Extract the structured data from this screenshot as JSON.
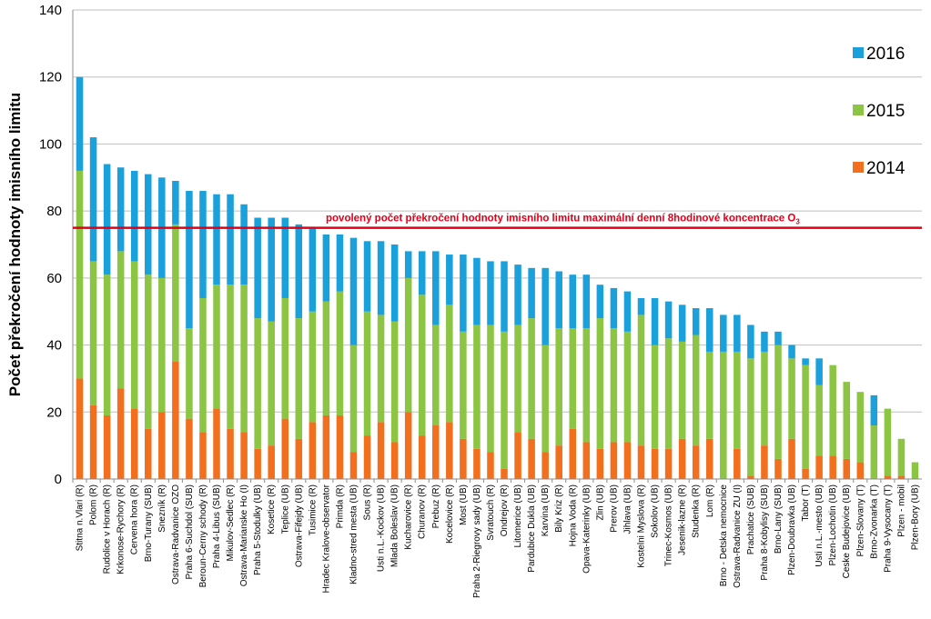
{
  "chart_data": {
    "type": "bar",
    "stacked": true,
    "title": "",
    "xlabel": "",
    "ylabel": "Počet překročení hodnoty imisního limitu",
    "ylim": [
      0,
      140
    ],
    "yticks": [
      0,
      20,
      40,
      60,
      80,
      100,
      120,
      140
    ],
    "grid": "horizontal",
    "legend_position": "right",
    "colors": {
      "2014": "#f26f1e",
      "2015": "#8cc544",
      "2016": "#1aa1dc",
      "limit": "#e0001a"
    },
    "categories": [
      "Stitna n.Vlari (R)",
      "Polom (R)",
      "Rudolice v Horach (R)",
      "Krkonose-Rychory (R)",
      "Cervena hora (R)",
      "Brno-Turany (SUB)",
      "Snezník (R)",
      "Ostrava-Radvanice OZO",
      "Praha 6-Suchdol (SUB)",
      "Beroun-Cerny schody (R)",
      "Praha 4-Libus (SUB)",
      "Mikulov-Sedlec (R)",
      "Ostrava-Marianske Ho (I)",
      "Praha 5-Stodulky (UB)",
      "Kosetice (R)",
      "Teplice (UB)",
      "Ostrava-Fifejdy (UB)",
      "Tusimice (R)",
      "Hradec Kralove-observator",
      "Primda (R)",
      "Kladno-stred mesta (UB)",
      "Sous (R)",
      "Usti n.L.-Kockov (UB)",
      "Mlada Boleslav (UB)",
      "Kucharovice (R)",
      "Churanov (R)",
      "Prebuz (R)",
      "Kocelovice (R)",
      "Most (UB)",
      "Praha 2-Riegrovy sady (UB)",
      "Svratouch (R)",
      "Ondrejov (R)",
      "Litomerice (UB)",
      "Pardubice Dukla (UB)",
      "Karvina (UB)",
      "Bily Kriz (R)",
      "Hojna Voda (R)",
      "Opava-Katerinky (UB)",
      "Zlin (UB)",
      "Prerov (UB)",
      "Jihlava (UB)",
      "Kostelni Myslova (R)",
      "Sokolov (UB)",
      "Trinec-Kosmos (UB)",
      "Jesenik-lazne (R)",
      "Studenka (R)",
      "Lom (R)",
      "Brno - Detska nemocnice",
      "Ostrava-Radvanice ZU (I)",
      "Prachatice (SUB)",
      "Praha 8-Kobylisy (SUB)",
      "Brno-Lany (SUB)",
      "Plzen-Doubravka (UB)",
      "Tabor (T)",
      "Usti n.L.-mesto (UB)",
      "Plzen-Lochotin (UB)",
      "Ceske Budejovice (UB)",
      "Plzen-Slovany (T)",
      "Brno-Zvonarka (T)",
      "Praha 9-Vysocany (T)",
      "Plzen - mobil",
      "Plzen-Bory (UB)"
    ],
    "series": [
      {
        "name": "2014",
        "values": [
          30,
          22,
          19,
          27,
          21,
          15,
          20,
          35,
          18,
          14,
          21,
          15,
          14,
          9,
          10,
          18,
          12,
          17,
          19,
          19,
          8,
          13,
          17,
          11,
          20,
          13,
          16,
          17,
          12,
          9,
          8,
          3,
          14,
          12,
          8,
          10,
          15,
          11,
          9,
          11,
          11,
          10,
          9,
          9,
          12,
          10,
          12,
          0,
          9,
          1,
          10,
          6,
          12,
          3,
          7,
          7,
          6,
          5,
          0,
          1,
          1,
          0
        ]
      },
      {
        "name": "2015",
        "values": [
          62,
          43,
          42,
          41,
          44,
          46,
          40,
          41,
          27,
          40,
          37,
          43,
          44,
          39,
          37,
          36,
          36,
          33,
          34,
          37,
          32,
          37,
          32,
          36,
          40,
          42,
          30,
          35,
          32,
          37,
          38,
          41,
          32,
          36,
          32,
          35,
          30,
          34,
          39,
          34,
          33,
          39,
          31,
          33,
          29,
          33,
          26,
          38,
          29,
          35,
          28,
          34,
          24,
          31,
          21,
          27,
          23,
          21,
          16,
          20,
          11,
          5
        ]
      },
      {
        "name": "2016",
        "values": [
          28,
          37,
          33,
          25,
          27,
          30,
          30,
          13,
          41,
          32,
          27,
          27,
          24,
          30,
          31,
          24,
          28,
          25,
          20,
          17,
          32,
          21,
          22,
          23,
          8,
          13,
          22,
          15,
          23,
          20,
          19,
          21,
          18,
          15,
          23,
          17,
          16,
          16,
          10,
          12,
          12,
          5,
          14,
          11,
          11,
          8,
          13,
          11,
          11,
          10,
          6,
          4,
          4,
          2,
          8,
          0,
          0,
          0,
          9,
          0,
          0,
          0
        ]
      }
    ],
    "reference_line": {
      "value": 75,
      "label": "povolený počet překročení hodnoty imisního limitu maximální denní 8hodinové koncentrace O",
      "label_subscript": "3"
    }
  }
}
